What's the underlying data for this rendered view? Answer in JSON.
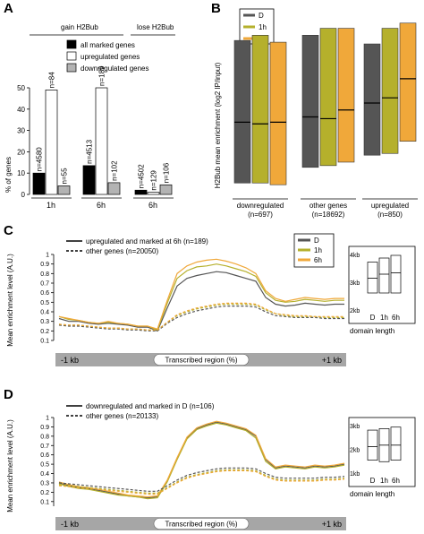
{
  "panels": {
    "A": {
      "letter": "A"
    },
    "B": {
      "letter": "B"
    },
    "C": {
      "letter": "C"
    },
    "D": {
      "letter": "D"
    }
  },
  "colors": {
    "D": "#555555",
    "h1": "#b5b02c",
    "h6": "#f0a83a",
    "white": "#ffffff",
    "gray": "#b3b3b3",
    "black": "#000000"
  },
  "chart_data": [
    {
      "id": "A",
      "type": "bar",
      "title": "",
      "ylabel": "% of genes",
      "ylim": [
        0,
        50
      ],
      "yticks": [
        0,
        10,
        20,
        30,
        40,
        50
      ],
      "group_headers": [
        "gain H2Bub",
        "lose H2Bub"
      ],
      "legend": [
        "all marked genes",
        "upregulated genes",
        "downregulated genes"
      ],
      "legend_placement": "top-right",
      "categories": [
        "1h",
        "6h",
        "6h"
      ],
      "series": [
        {
          "name": "all marked genes",
          "values": [
            10,
            13.5,
            2
          ],
          "labels": [
            "n=4580",
            "n=4513",
            "n=4502"
          ]
        },
        {
          "name": "upregulated genes",
          "values": [
            49,
            50,
            1
          ],
          "labels": [
            "n=84",
            "n=189",
            "n=129"
          ]
        },
        {
          "name": "downregulated genes",
          "values": [
            4,
            5.5,
            4.5
          ],
          "labels": [
            "n=55",
            "n=102",
            "n=106"
          ]
        }
      ]
    },
    {
      "id": "B",
      "type": "bar",
      "ylabel": "H2Bub mean enrichment (log2 IP/input)",
      "legend": [
        "D",
        "1h",
        "6h"
      ],
      "legend_placement": "top-left",
      "categories": [
        "downregulated\n(n=697)",
        "other genes\n(n=18692)",
        "upregulated\n(n=850)"
      ],
      "category_lines": [
        [
          "downregulated",
          "(n=697)"
        ],
        [
          "other genes",
          "(n=18692)"
        ],
        [
          "upregulated",
          "(n=850)"
        ]
      ],
      "ylim": [
        -0.3,
        0.7
      ],
      "series": [
        {
          "name": "D",
          "low": [
            -0.26,
            -0.17,
            -0.1
          ],
          "mid": [
            0.09,
            0.12,
            0.2
          ],
          "high": [
            0.56,
            0.59,
            0.54
          ]
        },
        {
          "name": "1h",
          "low": [
            -0.26,
            -0.16,
            -0.09
          ],
          "mid": [
            0.08,
            0.11,
            0.23
          ],
          "high": [
            0.59,
            0.63,
            0.63
          ]
        },
        {
          "name": "6h",
          "low": [
            -0.27,
            -0.14,
            -0.02
          ],
          "mid": [
            0.09,
            0.16,
            0.34
          ],
          "high": [
            0.55,
            0.63,
            0.66
          ]
        }
      ]
    },
    {
      "id": "C",
      "type": "line",
      "ylabel": "Mean enrichment level (A.U.)",
      "ylim": [
        0.1,
        1.0
      ],
      "yticks": [
        0.1,
        0.2,
        0.3,
        0.4,
        0.5,
        0.6,
        0.7,
        0.8,
        0.9,
        1
      ],
      "ytick_labels": [
        "0.1",
        "0.2",
        "0.3",
        "0.4",
        "0.5",
        "0.6",
        "0.7",
        "0.8",
        "0.9",
        "1"
      ],
      "legend_styles": [
        "upregulated and marked at 6h (n=189)",
        "other genes (n=20050)"
      ],
      "legend_colors": [
        "D",
        "1h",
        "6h"
      ],
      "x_labels": [
        "-1 kb",
        "Transcribed region (%)",
        "+1 kb"
      ],
      "x_domain": [
        0,
        100
      ],
      "series": [
        {
          "name": "D",
          "style": "solid",
          "values": [
            0.33,
            0.3,
            0.3,
            0.28,
            0.27,
            0.28,
            0.27,
            0.26,
            0.24,
            0.24,
            0.2,
            0.44,
            0.67,
            0.75,
            0.78,
            0.8,
            0.82,
            0.81,
            0.78,
            0.75,
            0.72,
            0.55,
            0.48,
            0.46,
            0.47,
            0.49,
            0.48,
            0.47,
            0.48,
            0.48
          ]
        },
        {
          "name": "1h",
          "style": "solid",
          "values": [
            0.35,
            0.32,
            0.31,
            0.29,
            0.28,
            0.29,
            0.28,
            0.27,
            0.25,
            0.25,
            0.21,
            0.49,
            0.75,
            0.83,
            0.87,
            0.88,
            0.9,
            0.88,
            0.85,
            0.82,
            0.77,
            0.6,
            0.52,
            0.5,
            0.51,
            0.53,
            0.52,
            0.51,
            0.52,
            0.52
          ]
        },
        {
          "name": "6h",
          "style": "solid",
          "values": [
            0.35,
            0.33,
            0.31,
            0.29,
            0.28,
            0.3,
            0.28,
            0.27,
            0.25,
            0.25,
            0.22,
            0.52,
            0.8,
            0.88,
            0.92,
            0.94,
            0.95,
            0.93,
            0.9,
            0.86,
            0.8,
            0.62,
            0.54,
            0.51,
            0.53,
            0.55,
            0.54,
            0.53,
            0.54,
            0.54
          ]
        },
        {
          "name": "D other",
          "style": "dashed",
          "values": [
            0.26,
            0.25,
            0.25,
            0.24,
            0.23,
            0.22,
            0.22,
            0.21,
            0.21,
            0.2,
            0.2,
            0.28,
            0.34,
            0.38,
            0.41,
            0.43,
            0.45,
            0.46,
            0.46,
            0.46,
            0.45,
            0.4,
            0.36,
            0.35,
            0.34,
            0.34,
            0.34,
            0.33,
            0.33,
            0.33
          ]
        },
        {
          "name": "1h other",
          "style": "dashed",
          "values": [
            0.27,
            0.26,
            0.26,
            0.25,
            0.24,
            0.23,
            0.23,
            0.22,
            0.22,
            0.21,
            0.21,
            0.29,
            0.36,
            0.4,
            0.43,
            0.45,
            0.47,
            0.48,
            0.48,
            0.48,
            0.47,
            0.42,
            0.38,
            0.36,
            0.35,
            0.35,
            0.35,
            0.34,
            0.34,
            0.34
          ]
        },
        {
          "name": "6h other",
          "style": "dashed",
          "values": [
            0.27,
            0.26,
            0.26,
            0.25,
            0.24,
            0.23,
            0.23,
            0.22,
            0.22,
            0.21,
            0.21,
            0.29,
            0.37,
            0.41,
            0.44,
            0.46,
            0.48,
            0.49,
            0.49,
            0.49,
            0.48,
            0.43,
            0.38,
            0.37,
            0.36,
            0.36,
            0.35,
            0.35,
            0.35,
            0.35
          ]
        }
      ],
      "inset": {
        "ylabels": [
          "4kb",
          "3kb",
          "2kb"
        ],
        "categories": [
          "D",
          "1h",
          "6h"
        ],
        "xlabel": "domain length",
        "boxes": [
          {
            "low": 1.2,
            "mid": 2.3,
            "high": 3.5
          },
          {
            "low": 1.2,
            "mid": 2.6,
            "high": 3.8
          },
          {
            "low": 1.2,
            "mid": 2.7,
            "high": 4.0
          }
        ]
      }
    },
    {
      "id": "D",
      "type": "line",
      "ylabel": "Mean enrichment level (A.U.)",
      "ylim": [
        0.05,
        1.0
      ],
      "yticks": [
        0.1,
        0.2,
        0.3,
        0.4,
        0.5,
        0.6,
        0.7,
        0.8,
        0.9,
        1
      ],
      "ytick_labels": [
        "0.1",
        "0.2",
        "0.3",
        "0.4",
        "0.5",
        "0.6",
        "0.7",
        "0.8",
        "0.9",
        "1"
      ],
      "legend_styles": [
        "downregulated and marked in D (n=106)",
        "other genes (n=20133)"
      ],
      "x_labels": [
        "-1 kb",
        "Transcribed region (%)",
        "+1 kb"
      ],
      "x_domain": [
        0,
        100
      ],
      "series": [
        {
          "name": "D",
          "style": "solid",
          "values": [
            0.3,
            0.27,
            0.25,
            0.24,
            0.22,
            0.2,
            0.18,
            0.16,
            0.15,
            0.14,
            0.15,
            0.32,
            0.56,
            0.78,
            0.88,
            0.92,
            0.95,
            0.93,
            0.9,
            0.87,
            0.8,
            0.55,
            0.46,
            0.48,
            0.47,
            0.46,
            0.48,
            0.47,
            0.48,
            0.5
          ]
        },
        {
          "name": "1h",
          "style": "solid",
          "values": [
            0.29,
            0.26,
            0.24,
            0.23,
            0.21,
            0.19,
            0.17,
            0.16,
            0.15,
            0.13,
            0.14,
            0.31,
            0.55,
            0.77,
            0.87,
            0.91,
            0.94,
            0.92,
            0.89,
            0.86,
            0.78,
            0.53,
            0.45,
            0.47,
            0.46,
            0.45,
            0.47,
            0.46,
            0.47,
            0.49
          ]
        },
        {
          "name": "6h",
          "style": "solid",
          "values": [
            0.31,
            0.28,
            0.26,
            0.25,
            0.23,
            0.21,
            0.19,
            0.17,
            0.16,
            0.15,
            0.16,
            0.33,
            0.57,
            0.79,
            0.89,
            0.93,
            0.96,
            0.94,
            0.91,
            0.88,
            0.81,
            0.56,
            0.47,
            0.49,
            0.48,
            0.47,
            0.49,
            0.48,
            0.49,
            0.51
          ]
        },
        {
          "name": "D other",
          "style": "dashed",
          "values": [
            0.3,
            0.29,
            0.28,
            0.27,
            0.26,
            0.25,
            0.24,
            0.23,
            0.22,
            0.21,
            0.21,
            0.27,
            0.33,
            0.38,
            0.41,
            0.43,
            0.45,
            0.46,
            0.46,
            0.46,
            0.45,
            0.4,
            0.36,
            0.35,
            0.35,
            0.35,
            0.35,
            0.36,
            0.36,
            0.37
          ]
        },
        {
          "name": "1h other",
          "style": "dashed",
          "values": [
            0.28,
            0.27,
            0.26,
            0.25,
            0.24,
            0.23,
            0.22,
            0.21,
            0.2,
            0.19,
            0.19,
            0.25,
            0.31,
            0.36,
            0.39,
            0.41,
            0.43,
            0.44,
            0.44,
            0.44,
            0.43,
            0.38,
            0.34,
            0.33,
            0.33,
            0.33,
            0.33,
            0.34,
            0.34,
            0.35
          ]
        },
        {
          "name": "6h other",
          "style": "dashed",
          "values": [
            0.27,
            0.26,
            0.25,
            0.24,
            0.23,
            0.22,
            0.21,
            0.2,
            0.19,
            0.18,
            0.18,
            0.24,
            0.3,
            0.35,
            0.38,
            0.4,
            0.42,
            0.43,
            0.43,
            0.43,
            0.42,
            0.37,
            0.33,
            0.32,
            0.32,
            0.32,
            0.32,
            0.33,
            0.33,
            0.34
          ]
        }
      ],
      "inset": {
        "ylabels": [
          "3kb",
          "2kb",
          "1kb"
        ],
        "categories": [
          "D",
          "1h",
          "6h"
        ],
        "xlabel": "domain length",
        "boxes": [
          {
            "low": 0.8,
            "mid": 1.7,
            "high": 2.8
          },
          {
            "low": 0.7,
            "mid": 1.8,
            "high": 2.9
          },
          {
            "low": 0.8,
            "mid": 1.8,
            "high": 3.0
          }
        ]
      }
    }
  ]
}
